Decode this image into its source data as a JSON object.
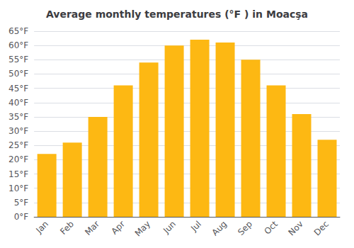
{
  "chart_data": {
    "type": "bar",
    "title": "Average monthly temperatures (°F ) in Moacşa",
    "categories": [
      "Jan",
      "Feb",
      "Mar",
      "Apr",
      "May",
      "Jun",
      "Jul",
      "Aug",
      "Sep",
      "Oct",
      "Nov",
      "Dec"
    ],
    "values": [
      22,
      26,
      35,
      46,
      54,
      60,
      62,
      61,
      55,
      46,
      36,
      27
    ],
    "color": "#FDB813",
    "ylim": [
      0,
      65
    ],
    "yticks": [
      {
        "value": 0,
        "label": "0°F"
      },
      {
        "value": 5,
        "label": "5°F"
      },
      {
        "value": 10,
        "label": "10°F"
      },
      {
        "value": 15,
        "label": "15°F"
      },
      {
        "value": 20,
        "label": "20°F"
      },
      {
        "value": 25,
        "label": "25°F"
      },
      {
        "value": 30,
        "label": "30°F"
      },
      {
        "value": 35,
        "label": "35°F"
      },
      {
        "value": 40,
        "label": "40°F"
      },
      {
        "value": 45,
        "label": "45°F"
      },
      {
        "value": 50,
        "label": "50°F"
      },
      {
        "value": 55,
        "label": "55°F"
      },
      {
        "value": 60,
        "label": "60°F"
      },
      {
        "value": 65,
        "label": "65°F"
      }
    ],
    "grid": true
  }
}
